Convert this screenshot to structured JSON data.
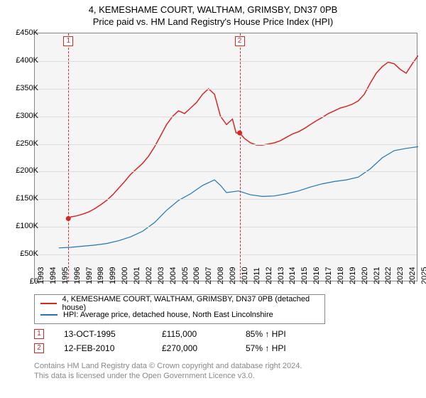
{
  "title": "4, KEMESHAME COURT, WALTHAM, GRIMSBY, DN37 0PB",
  "subtitle": "Price paid vs. HM Land Registry's House Price Index (HPI)",
  "chart": {
    "type": "line",
    "background_color": "#f5f5f5",
    "grid_color": "#dddddd",
    "border_color": "#888888",
    "ylim": [
      0,
      450000
    ],
    "ytick_step": 50000,
    "yticks": [
      "£0",
      "£50K",
      "£100K",
      "£150K",
      "£200K",
      "£250K",
      "£300K",
      "£350K",
      "£400K",
      "£450K"
    ],
    "xlim": [
      1993,
      2025
    ],
    "xticks": [
      1993,
      1994,
      1995,
      1996,
      1997,
      1998,
      1999,
      2000,
      2001,
      2002,
      2003,
      2004,
      2005,
      2006,
      2007,
      2008,
      2009,
      2010,
      2011,
      2012,
      2013,
      2014,
      2015,
      2016,
      2017,
      2018,
      2019,
      2020,
      2021,
      2022,
      2023,
      2024,
      2025
    ],
    "series": [
      {
        "name": "4, KEMESHAME COURT, WALTHAM, GRIMSBY, DN37 0PB (detached house)",
        "color": "#d62728",
        "width": 1.5,
        "data": [
          [
            1995.8,
            115000
          ],
          [
            1996,
            118000
          ],
          [
            1996.5,
            120000
          ],
          [
            1997,
            123000
          ],
          [
            1997.5,
            127000
          ],
          [
            1998,
            133000
          ],
          [
            1998.5,
            140000
          ],
          [
            1999,
            148000
          ],
          [
            1999.5,
            158000
          ],
          [
            2000,
            170000
          ],
          [
            2000.5,
            182000
          ],
          [
            2001,
            195000
          ],
          [
            2001.5,
            205000
          ],
          [
            2002,
            215000
          ],
          [
            2002.5,
            228000
          ],
          [
            2003,
            245000
          ],
          [
            2003.5,
            265000
          ],
          [
            2004,
            285000
          ],
          [
            2004.5,
            300000
          ],
          [
            2005,
            310000
          ],
          [
            2005.5,
            305000
          ],
          [
            2006,
            315000
          ],
          [
            2006.5,
            325000
          ],
          [
            2007,
            340000
          ],
          [
            2007.5,
            350000
          ],
          [
            2008,
            340000
          ],
          [
            2008.5,
            300000
          ],
          [
            2009,
            285000
          ],
          [
            2009.5,
            295000
          ],
          [
            2009.8,
            270000
          ],
          [
            2010.1,
            270000
          ],
          [
            2010.5,
            260000
          ],
          [
            2011,
            252000
          ],
          [
            2011.5,
            248000
          ],
          [
            2012,
            248000
          ],
          [
            2012.5,
            250000
          ],
          [
            2013,
            252000
          ],
          [
            2013.5,
            256000
          ],
          [
            2014,
            262000
          ],
          [
            2014.5,
            268000
          ],
          [
            2015,
            272000
          ],
          [
            2015.5,
            278000
          ],
          [
            2016,
            285000
          ],
          [
            2016.5,
            292000
          ],
          [
            2017,
            298000
          ],
          [
            2017.5,
            305000
          ],
          [
            2018,
            310000
          ],
          [
            2018.5,
            315000
          ],
          [
            2019,
            318000
          ],
          [
            2019.5,
            322000
          ],
          [
            2020,
            328000
          ],
          [
            2020.5,
            340000
          ],
          [
            2021,
            360000
          ],
          [
            2021.5,
            378000
          ],
          [
            2022,
            390000
          ],
          [
            2022.5,
            398000
          ],
          [
            2023,
            395000
          ],
          [
            2023.5,
            385000
          ],
          [
            2024,
            378000
          ],
          [
            2024.5,
            395000
          ],
          [
            2025,
            410000
          ]
        ]
      },
      {
        "name": "HPI: Average price, detached house, North East Lincolnshire",
        "color": "#1f77b4",
        "width": 1.2,
        "data": [
          [
            1995,
            62000
          ],
          [
            1996,
            63000
          ],
          [
            1997,
            65000
          ],
          [
            1998,
            67000
          ],
          [
            1999,
            70000
          ],
          [
            2000,
            75000
          ],
          [
            2001,
            82000
          ],
          [
            2002,
            92000
          ],
          [
            2003,
            108000
          ],
          [
            2004,
            130000
          ],
          [
            2005,
            148000
          ],
          [
            2006,
            160000
          ],
          [
            2007,
            175000
          ],
          [
            2008,
            185000
          ],
          [
            2008.5,
            175000
          ],
          [
            2009,
            162000
          ],
          [
            2010,
            165000
          ],
          [
            2011,
            158000
          ],
          [
            2012,
            155000
          ],
          [
            2013,
            156000
          ],
          [
            2014,
            160000
          ],
          [
            2015,
            165000
          ],
          [
            2016,
            172000
          ],
          [
            2017,
            178000
          ],
          [
            2018,
            182000
          ],
          [
            2019,
            185000
          ],
          [
            2020,
            190000
          ],
          [
            2021,
            205000
          ],
          [
            2022,
            225000
          ],
          [
            2023,
            238000
          ],
          [
            2024,
            242000
          ],
          [
            2025,
            245000
          ]
        ]
      }
    ],
    "markers": [
      {
        "id": "1",
        "x": 1995.8,
        "y": 115000
      },
      {
        "id": "2",
        "x": 2010.1,
        "y": 270000
      }
    ],
    "marker_color": "#d62728"
  },
  "legend": {
    "items": [
      {
        "color": "#d62728",
        "label": "4, KEMESHAME COURT, WALTHAM, GRIMSBY, DN37 0PB (detached house)"
      },
      {
        "color": "#1f77b4",
        "label": "HPI: Average price, detached house, North East Lincolnshire"
      }
    ]
  },
  "sales": [
    {
      "id": "1",
      "date": "13-OCT-1995",
      "price": "£115,000",
      "pct": "85% ↑ HPI"
    },
    {
      "id": "2",
      "date": "12-FEB-2010",
      "price": "£270,000",
      "pct": "57% ↑ HPI"
    }
  ],
  "footer": {
    "line1": "Contains HM Land Registry data © Crown copyright and database right 2024.",
    "line2": "This data is licensed under the Open Government Licence v3.0."
  }
}
